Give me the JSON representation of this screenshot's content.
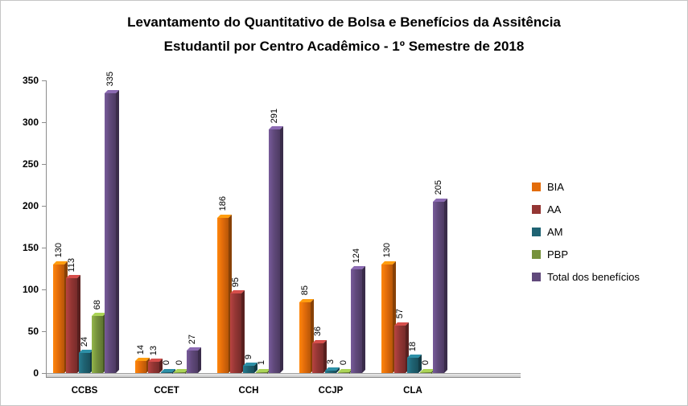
{
  "chart_data": {
    "type": "bar",
    "title": "Levantamento do Quantitativo de Bolsa e Benefícios da Assitência Estudantil  por Centro Acadêmico - 1º Semestre de 2018",
    "title_lines": [
      "Levantamento do Quantitativo de Bolsa e Benefícios da Assitência",
      "Estudantil  por Centro Acadêmico - 1º Semestre de 2018"
    ],
    "categories": [
      "CCBS",
      "CCET",
      "CCH",
      "CCJP",
      "CLA"
    ],
    "series": [
      {
        "name": "BIA",
        "color": "#E36C0A",
        "values": [
          130,
          14,
          186,
          85,
          130
        ]
      },
      {
        "name": "AA",
        "color": "#943634",
        "values": [
          113,
          13,
          95,
          36,
          57
        ]
      },
      {
        "name": "AM",
        "color": "#1F6373",
        "values": [
          24,
          0,
          9,
          3,
          18
        ]
      },
      {
        "name": "PBP",
        "color": "#76923C",
        "values": [
          68,
          0,
          1,
          0,
          0
        ]
      },
      {
        "name": "Total dos benefícios",
        "color": "#60497B",
        "values": [
          335,
          27,
          291,
          124,
          205
        ]
      }
    ],
    "ylim": [
      0,
      350
    ],
    "ytick_step": 50,
    "grid": false,
    "legend_position": "right",
    "value_labels": "rotated-90",
    "style_3d": true
  }
}
